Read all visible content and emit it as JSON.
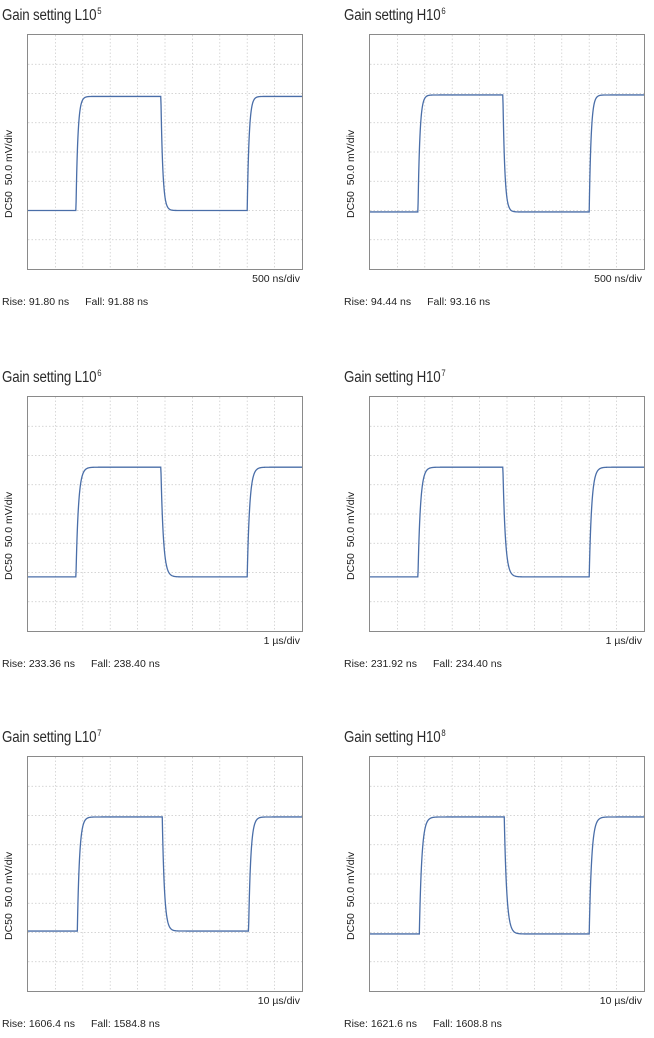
{
  "panels": [
    {
      "title": "Gain setting L10",
      "exp": "5",
      "coupling": "DC50",
      "vscale": "50.0 mV/div",
      "hscale": "500 ns/div",
      "rise": "Rise: 91.80 ns",
      "fall": "Fall: 91.88 ns"
    },
    {
      "title": "Gain setting H10",
      "exp": "6",
      "coupling": "DC50",
      "vscale": "50.0 mV/div",
      "hscale": "500 ns/div",
      "rise": "Rise: 94.44 ns",
      "fall": "Fall: 93.16 ns"
    },
    {
      "title": "Gain setting L10",
      "exp": "6",
      "coupling": "DC50",
      "vscale": "50.0 mV/div",
      "hscale": "1 µs/div",
      "rise": "Rise: 233.36 ns",
      "fall": "Fall: 238.40 ns"
    },
    {
      "title": "Gain setting H10",
      "exp": "7",
      "coupling": "DC50",
      "vscale": "50.0 mV/div",
      "hscale": "1 µs/div",
      "rise": "Rise: 231.92 ns",
      "fall": "Fall: 234.40 ns"
    },
    {
      "title": "Gain setting L10",
      "exp": "7",
      "coupling": "DC50",
      "vscale": "50.0 mV/div",
      "hscale": "10 µs/div",
      "rise": "Rise: 1606.4 ns",
      "fall": "Fall: 1584.8 ns"
    },
    {
      "title": "Gain setting H10",
      "exp": "8",
      "coupling": "DC50",
      "vscale": "50.0 mV/div",
      "hscale": "10 µs/div",
      "rise": "Rise: 1621.6 ns",
      "fall": "Fall: 1608.8 ns"
    }
  ],
  "chart_data": [
    {
      "type": "line",
      "title": "Gain setting L10^5",
      "ylabel": "DC50  50.0 mV/div",
      "xlabel": "500 ns/div",
      "grid": true,
      "x_div": [
        0,
        10
      ],
      "y_div": [
        0,
        8
      ],
      "low_div": 2.0,
      "high_div": 5.9,
      "rise_start_div": 1.75,
      "fall_start_div": 4.85,
      "rise2_start_div": 8.0,
      "tau_div": 0.07,
      "series": [
        {
          "values": "square pulse, low 2.0 div, high 5.9 div"
        }
      ],
      "line_color": "#4a6ea8"
    },
    {
      "type": "line",
      "title": "Gain setting H10^6",
      "ylabel": "DC50  50.0 mV/div",
      "xlabel": "500 ns/div",
      "grid": true,
      "x_div": [
        0,
        10
      ],
      "y_div": [
        0,
        8
      ],
      "low_div": 1.95,
      "high_div": 5.95,
      "rise_start_div": 1.75,
      "fall_start_div": 4.85,
      "rise2_start_div": 8.0,
      "tau_div": 0.07,
      "series": [
        {
          "values": "square pulse, low 1.95 div, high 5.95 div"
        }
      ],
      "line_color": "#4a6ea8"
    },
    {
      "type": "line",
      "title": "Gain setting L10^6",
      "ylabel": "DC50  50.0 mV/div",
      "xlabel": "1 µs/div",
      "grid": true,
      "x_div": [
        0,
        10
      ],
      "y_div": [
        0,
        8
      ],
      "low_div": 1.85,
      "high_div": 5.6,
      "rise_start_div": 1.75,
      "fall_start_div": 4.85,
      "rise2_start_div": 8.0,
      "tau_div": 0.09,
      "series": [
        {
          "values": "square pulse, low 1.85 div, high 5.6 div"
        }
      ],
      "line_color": "#4a6ea8"
    },
    {
      "type": "line",
      "title": "Gain setting H10^7",
      "ylabel": "DC50  50.0 mV/div",
      "xlabel": "1 µs/div",
      "grid": true,
      "x_div": [
        0,
        10
      ],
      "y_div": [
        0,
        8
      ],
      "low_div": 1.85,
      "high_div": 5.6,
      "rise_start_div": 1.75,
      "fall_start_div": 4.85,
      "rise2_start_div": 8.0,
      "tau_div": 0.09,
      "series": [
        {
          "values": "square pulse, low 1.85 div, high 5.6 div"
        }
      ],
      "line_color": "#4a6ea8"
    },
    {
      "type": "line",
      "title": "Gain setting L10^7",
      "ylabel": "DC50  50.0 mV/div",
      "xlabel": "10 µs/div",
      "grid": true,
      "x_div": [
        0,
        10
      ],
      "y_div": [
        0,
        8
      ],
      "low_div": 2.05,
      "high_div": 5.95,
      "rise_start_div": 1.8,
      "fall_start_div": 4.9,
      "rise2_start_div": 8.05,
      "tau_div": 0.08,
      "series": [
        {
          "values": "square pulse, low 2.05 div, high 5.95 div"
        }
      ],
      "line_color": "#4a6ea8"
    },
    {
      "type": "line",
      "title": "Gain setting H10^8",
      "ylabel": "DC50  50.0 mV/div",
      "xlabel": "10 µs/div",
      "grid": true,
      "x_div": [
        0,
        10
      ],
      "y_div": [
        0,
        8
      ],
      "low_div": 1.95,
      "high_div": 5.95,
      "rise_start_div": 1.8,
      "fall_start_div": 4.9,
      "rise2_start_div": 8.0,
      "tau_div": 0.09,
      "series": [
        {
          "values": "square pulse, low 1.95 div, high 5.95 div"
        }
      ],
      "line_color": "#4a6ea8"
    }
  ]
}
